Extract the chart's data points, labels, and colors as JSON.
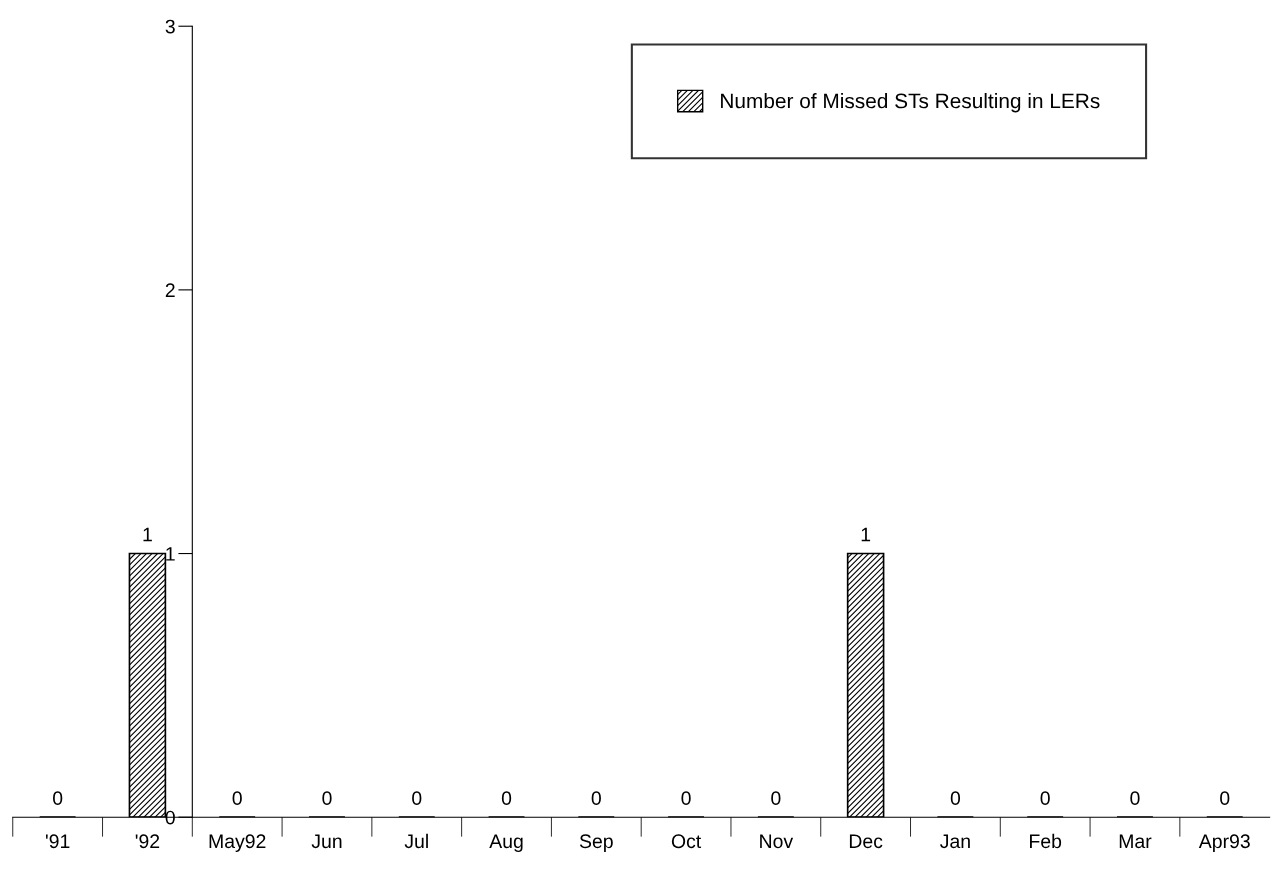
{
  "chart_data": {
    "type": "bar",
    "categories": [
      "'91",
      "'92",
      "May92",
      "Jun",
      "Jul",
      "Aug",
      "Sep",
      "Oct",
      "Nov",
      "Dec",
      "Jan",
      "Feb",
      "Mar",
      "Apr93"
    ],
    "series": [
      {
        "name": "Number of Missed STs Resulting in LERs",
        "color": "#000000",
        "values": [
          0,
          1,
          0,
          0,
          0,
          0,
          0,
          0,
          0,
          1,
          0,
          0,
          0,
          0
        ]
      }
    ],
    "ylim": [
      0,
      3
    ],
    "yticks": [
      0,
      1,
      2,
      3
    ],
    "data_labels": true,
    "grid": false,
    "legend": "top right"
  }
}
